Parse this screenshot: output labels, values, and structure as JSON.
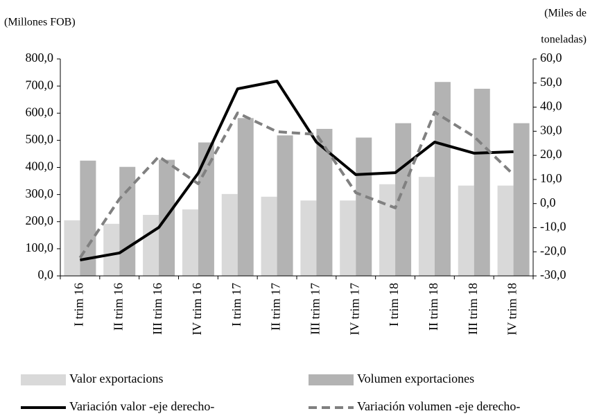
{
  "chart_data": {
    "type": "bar-line",
    "ylabel": "(Millones FOB)",
    "y2label": [
      "(Miles de",
      "toneladas)"
    ],
    "categories": [
      "I trim 16",
      "II trim 16",
      "III trim 16",
      "IV trim 16",
      "I trim 17",
      "II trim 17",
      "III trim 17",
      "IV trim 17",
      "I trim 18",
      "II trim 18",
      "III trim 18",
      "IV trim 18"
    ],
    "series": [
      {
        "name": "Valor exportacions",
        "type": "bar",
        "color": "#d9d9d9",
        "values": [
          205,
          192,
          225,
          245,
          302,
          292,
          278,
          278,
          338,
          365,
          333,
          333
        ]
      },
      {
        "name": "Volumen exportaciones",
        "type": "bar",
        "color": "#b3b3b3",
        "values": [
          425,
          402,
          428,
          492,
          582,
          518,
          542,
          510,
          563,
          715,
          690,
          563
        ]
      },
      {
        "name": "Variación valor -eje derecho-",
        "type": "line",
        "axis": "y2",
        "color": "#000000",
        "dash": false,
        "values": [
          -23.4,
          -20.5,
          -9.9,
          12.6,
          47.6,
          50.8,
          25.5,
          12,
          12.8,
          25.5,
          20.9,
          21.5
        ]
      },
      {
        "name": "Variación volumen -eje derecho-",
        "type": "line",
        "axis": "y2",
        "color": "#808080",
        "dash": true,
        "values": [
          -22.5,
          1.9,
          19.5,
          8.2,
          37.6,
          29.8,
          28.7,
          4.5,
          -1.8,
          37.9,
          27.8,
          12
        ]
      }
    ],
    "ylim": [
      0,
      800
    ],
    "yticks": [
      {
        "value": 0,
        "label": "0,0"
      },
      {
        "value": 100,
        "label": "100,0"
      },
      {
        "value": 200,
        "label": "200,0"
      },
      {
        "value": 300,
        "label": "300,0"
      },
      {
        "value": 400,
        "label": "400,0"
      },
      {
        "value": 500,
        "label": "500,0"
      },
      {
        "value": 600,
        "label": "600,0"
      },
      {
        "value": 700,
        "label": "700,0"
      },
      {
        "value": 800,
        "label": "800,0"
      }
    ],
    "y2lim": [
      -30,
      60
    ],
    "y2ticks": [
      {
        "value": -30,
        "label": "-30,0"
      },
      {
        "value": -20,
        "label": "-20,0"
      },
      {
        "value": -10,
        "label": "-10,0"
      },
      {
        "value": 0,
        "label": "0,0"
      },
      {
        "value": 10,
        "label": "10,0"
      },
      {
        "value": 20,
        "label": "20,0"
      },
      {
        "value": 30,
        "label": "30,0"
      },
      {
        "value": 40,
        "label": "40,0"
      },
      {
        "value": 50,
        "label": "50,0"
      },
      {
        "value": 60,
        "label": "60,0"
      }
    ],
    "grid": false
  }
}
